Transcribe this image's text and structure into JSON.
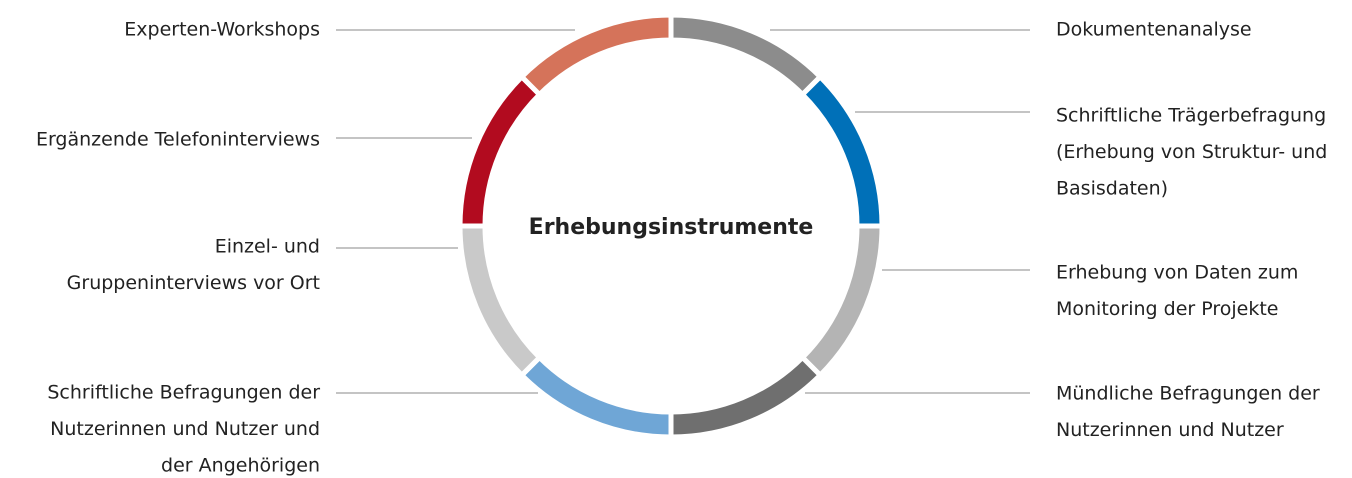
{
  "center": "Erhebungsinstrumente",
  "segments": [
    {
      "label": [
        "Dokumentenanalyse"
      ],
      "color": "#8c8c8c"
    },
    {
      "label": [
        "Schriftliche Trägerbefragung",
        "(Erhebung von Struktur- und",
        "Basisdaten)"
      ],
      "color": "#0070b8"
    },
    {
      "label": [
        "Erhebung von Daten zum",
        "Monitoring der Projekte"
      ],
      "color": "#b4b4b4"
    },
    {
      "label": [
        "Mündliche Befragungen der",
        "Nutzerinnen und Nutzer"
      ],
      "color": "#6f6f6f"
    },
    {
      "label": [
        "Schriftliche Befragungen der",
        "Nutzerinnen und Nutzer und",
        "der Angehörigen"
      ],
      "color": "#6fa6d6"
    },
    {
      "label": [
        "Einzel- und",
        "Gruppeninterviews vor Ort"
      ],
      "color": "#c9c9c9"
    },
    {
      "label": [
        "Ergänzende Telefoninterviews"
      ],
      "color": "#b20b1f"
    },
    {
      "label": [
        "Experten-Workshops"
      ],
      "color": "#d5735a"
    }
  ]
}
